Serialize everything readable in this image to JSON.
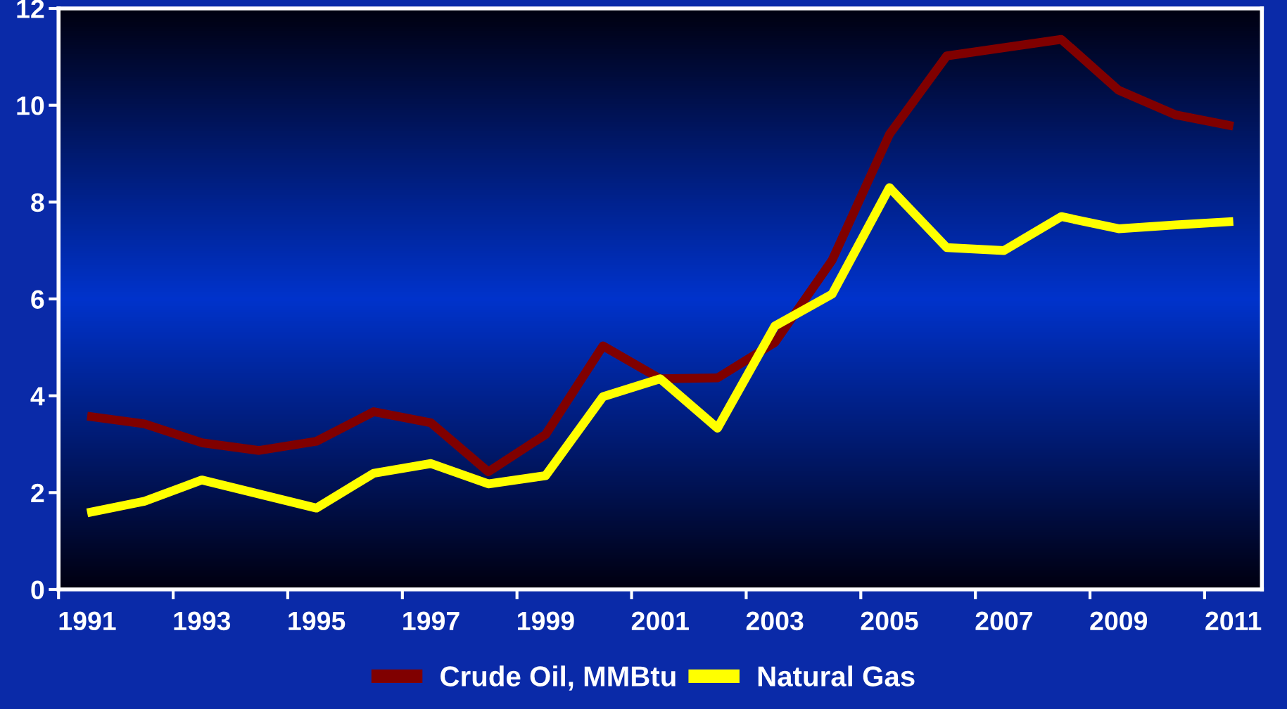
{
  "chart_data": {
    "type": "line",
    "categories": [
      "1991",
      null,
      "1993",
      null,
      "1995",
      null,
      "1997",
      null,
      "1999",
      null,
      "2001",
      null,
      "2003",
      null,
      "2005",
      null,
      "2007",
      null,
      "2009",
      null,
      "2011"
    ],
    "series": [
      {
        "name": "Crude Oil, MMBtu",
        "color": "#800000",
        "values": [
          3.58,
          3.42,
          3.03,
          2.87,
          3.06,
          3.67,
          3.44,
          2.43,
          3.2,
          5.03,
          4.35,
          4.37,
          5.1,
          6.8,
          9.4,
          11.02,
          11.19,
          11.36,
          10.31,
          9.8,
          9.57
        ]
      },
      {
        "name": "Natural Gas",
        "color": "#ffff00",
        "values": [
          1.58,
          1.82,
          2.26,
          1.97,
          1.68,
          2.4,
          2.6,
          2.18,
          2.35,
          3.98,
          4.35,
          3.33,
          5.44,
          6.1,
          8.3,
          7.06,
          7.0,
          7.7,
          7.45,
          7.53,
          7.6
        ]
      }
    ],
    "ylim": [
      0,
      12
    ],
    "yticks": [
      0,
      2,
      4,
      6,
      8,
      10,
      12
    ],
    "grid": false,
    "legend": "bottom",
    "marker": "none",
    "line_style": "solid"
  }
}
